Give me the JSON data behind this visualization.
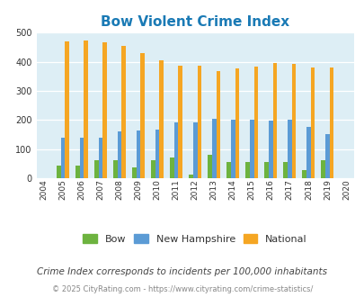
{
  "title": "Bow Violent Crime Index",
  "years": [
    2004,
    2005,
    2006,
    2007,
    2008,
    2009,
    2010,
    2011,
    2012,
    2013,
    2014,
    2015,
    2016,
    2017,
    2018,
    2019,
    2020
  ],
  "bow": [
    0,
    44,
    42,
    63,
    63,
    38,
    63,
    70,
    12,
    80,
    57,
    57,
    55,
    55,
    28,
    63,
    0
  ],
  "new_hampshire": [
    0,
    138,
    140,
    140,
    160,
    163,
    168,
    191,
    191,
    203,
    200,
    202,
    199,
    202,
    176,
    151,
    0
  ],
  "national": [
    0,
    469,
    473,
    467,
    455,
    431,
    405,
    387,
    387,
    368,
    376,
    383,
    397,
    394,
    380,
    380,
    0
  ],
  "bow_color": "#6db33f",
  "nh_color": "#5b9bd5",
  "national_color": "#f5a623",
  "bg_color": "#ddeef5",
  "ylim": [
    0,
    500
  ],
  "yticks": [
    0,
    100,
    200,
    300,
    400,
    500
  ],
  "subtitle": "Crime Index corresponds to incidents per 100,000 inhabitants",
  "footer": "© 2025 CityRating.com - https://www.cityrating.com/crime-statistics/",
  "title_color": "#1a7ab5",
  "footer_color": "#888888",
  "subtitle_color": "#444444"
}
